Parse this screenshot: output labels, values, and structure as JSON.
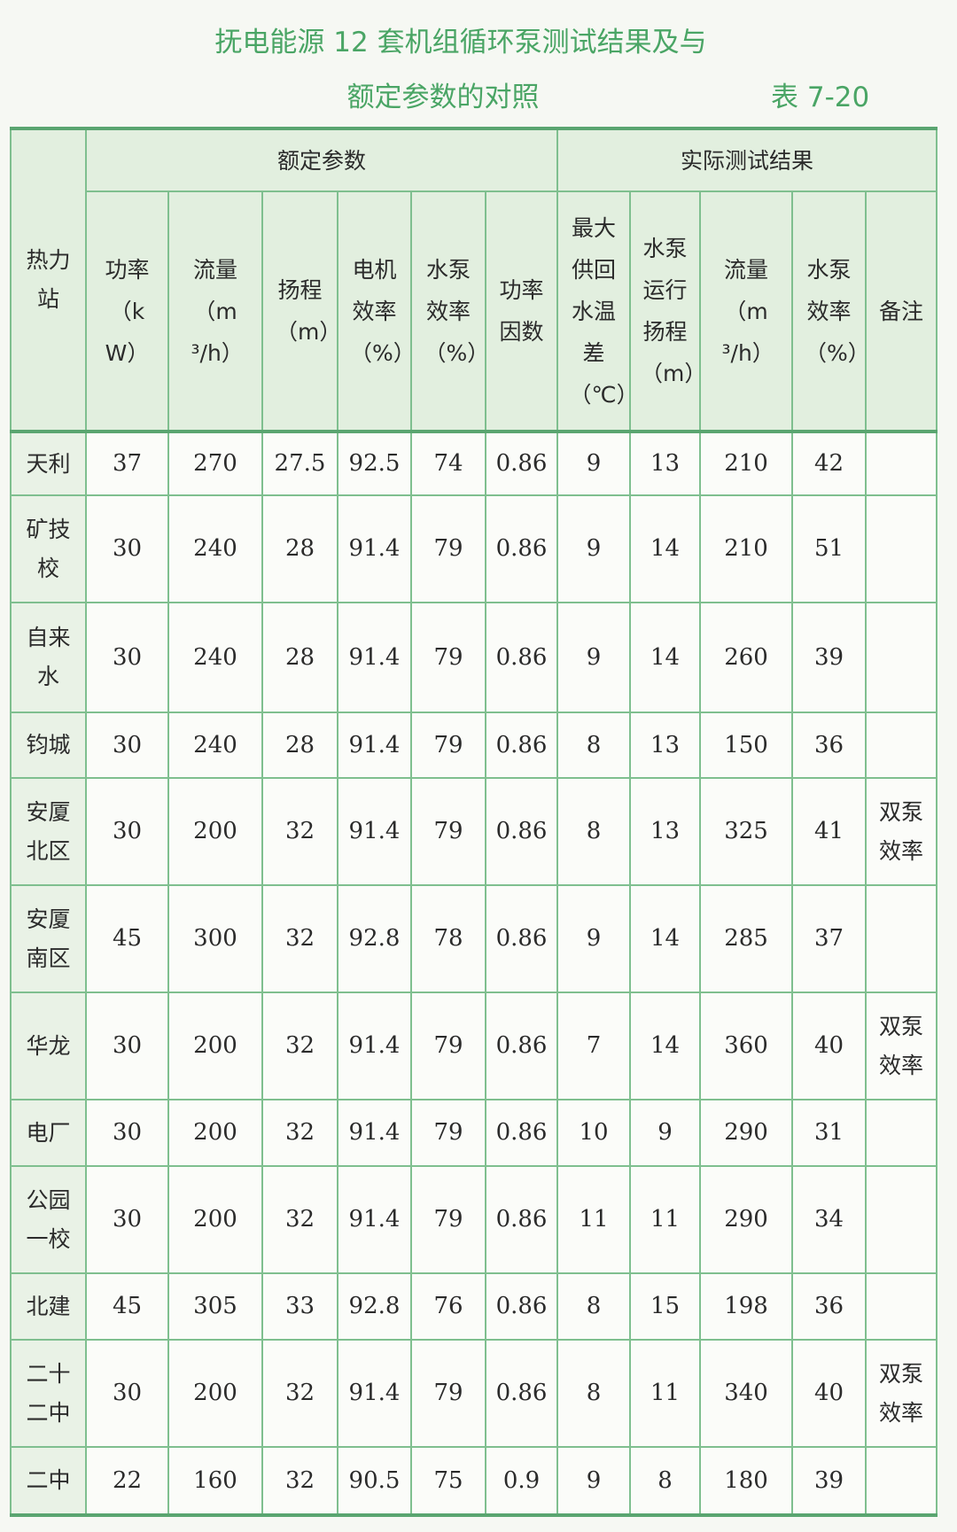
{
  "title_line1": "抚电能源 12 套机组循环泵测试结果及与",
  "title_line2": "额定参数的对照",
  "table_number": "表 7-20",
  "group_headers": {
    "station": "热力站",
    "rated": "额定参数",
    "actual": "实际测试结果"
  },
  "columns": [
    "功率（kW）",
    "流量（m³/h）",
    "扬程（m）",
    "电机效率（%）",
    "水泵效率（%）",
    "功率因数",
    "最大供回水温差（℃）",
    "水泵运行扬程（m）",
    "流量（m³/h）",
    "水泵效率（%）",
    "备注"
  ],
  "rows": [
    {
      "station": "天利",
      "v": [
        "37",
        "270",
        "27.5",
        "92.5",
        "74",
        "0.86",
        "9",
        "13",
        "210",
        "42",
        ""
      ]
    },
    {
      "station": "矿技校",
      "v": [
        "30",
        "240",
        "28",
        "91.4",
        "79",
        "0.86",
        "9",
        "14",
        "210",
        "51",
        ""
      ]
    },
    {
      "station": "自来水",
      "v": [
        "30",
        "240",
        "28",
        "91.4",
        "79",
        "0.86",
        "9",
        "14",
        "260",
        "39",
        ""
      ]
    },
    {
      "station": "钧城",
      "v": [
        "30",
        "240",
        "28",
        "91.4",
        "79",
        "0.86",
        "8",
        "13",
        "150",
        "36",
        ""
      ]
    },
    {
      "station": "安厦北区",
      "v": [
        "30",
        "200",
        "32",
        "91.4",
        "79",
        "0.86",
        "8",
        "13",
        "325",
        "41",
        "双泵效率"
      ]
    },
    {
      "station": "安厦南区",
      "v": [
        "45",
        "300",
        "32",
        "92.8",
        "78",
        "0.86",
        "9",
        "14",
        "285",
        "37",
        ""
      ]
    },
    {
      "station": "华龙",
      "v": [
        "30",
        "200",
        "32",
        "91.4",
        "79",
        "0.86",
        "7",
        "14",
        "360",
        "40",
        "双泵效率"
      ]
    },
    {
      "station": "电厂",
      "v": [
        "30",
        "200",
        "32",
        "91.4",
        "79",
        "0.86",
        "10",
        "9",
        "290",
        "31",
        ""
      ]
    },
    {
      "station": "公园一校",
      "v": [
        "30",
        "200",
        "32",
        "91.4",
        "79",
        "0.86",
        "11",
        "11",
        "290",
        "34",
        ""
      ]
    },
    {
      "station": "北建",
      "v": [
        "45",
        "305",
        "33",
        "92.8",
        "76",
        "0.86",
        "8",
        "15",
        "198",
        "36",
        ""
      ]
    },
    {
      "station": "二十二中",
      "v": [
        "30",
        "200",
        "32",
        "91.4",
        "79",
        "0.86",
        "8",
        "11",
        "340",
        "40",
        "双泵效率"
      ]
    },
    {
      "station": "二中",
      "v": [
        "22",
        "160",
        "32",
        "90.5",
        "75",
        "0.9",
        "9",
        "8",
        "180",
        "39",
        ""
      ]
    }
  ],
  "colors": {
    "title": "#4aa565",
    "rule": "#5aa570",
    "header_fill": "#e2efdf"
  }
}
